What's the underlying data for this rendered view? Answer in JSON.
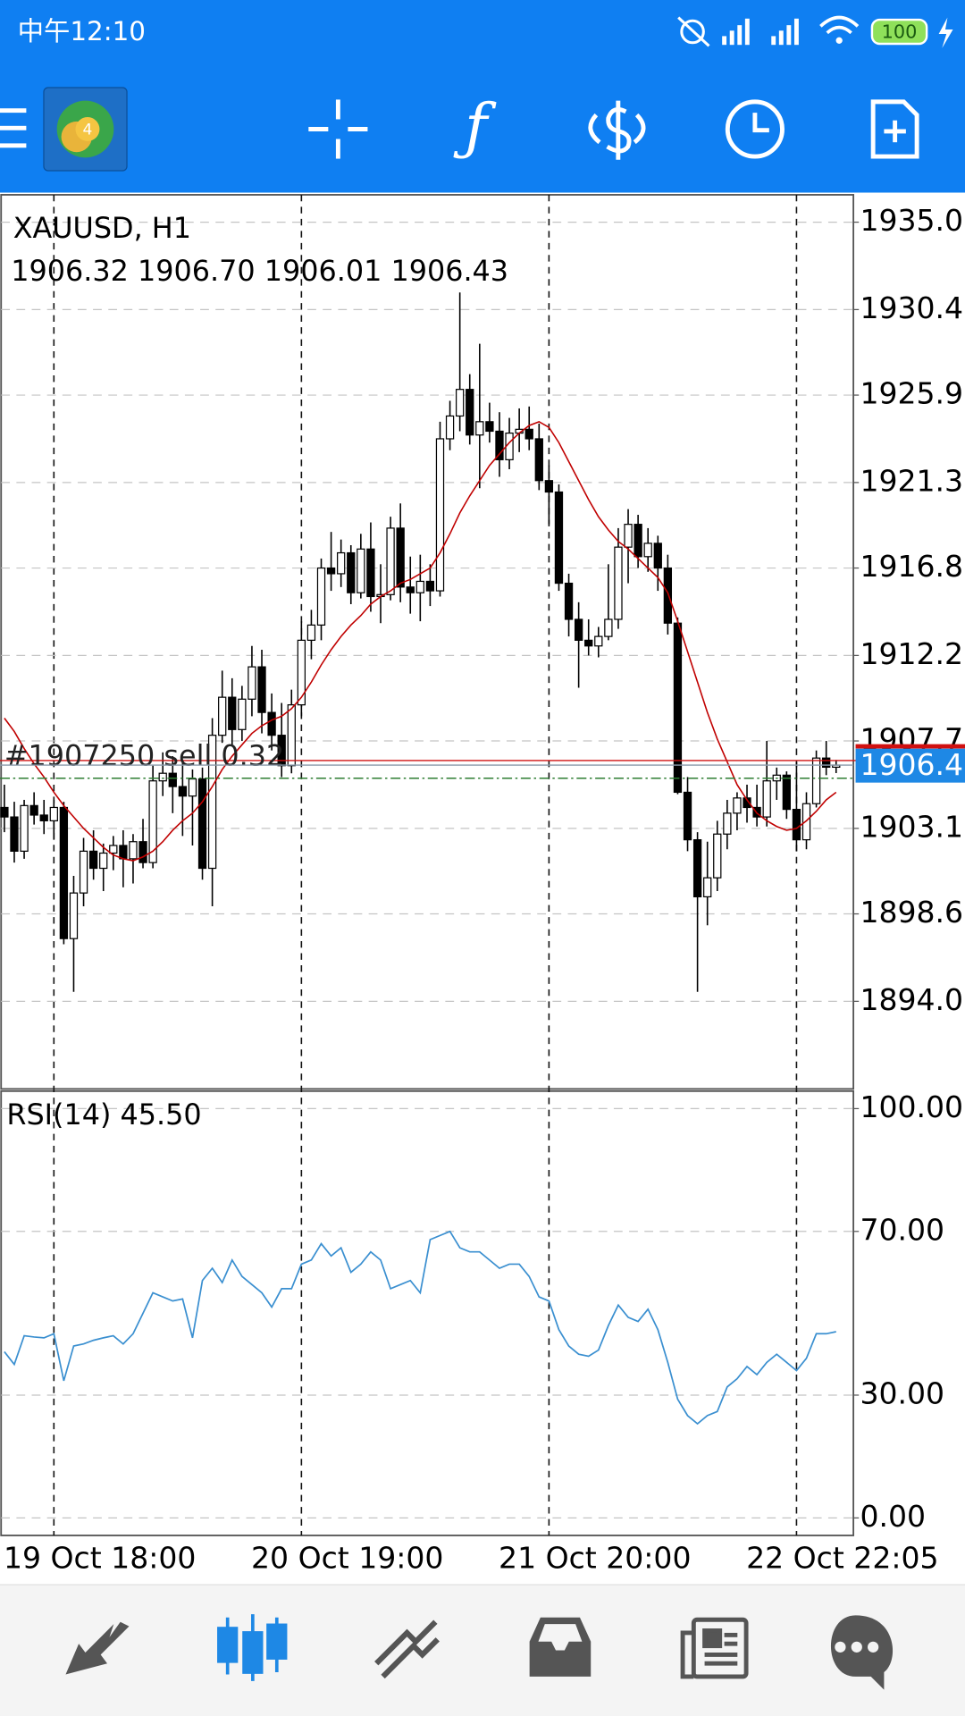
{
  "status_bar": {
    "time": "中午12:10",
    "battery": "100"
  },
  "chart_data": [
    {
      "type": "candlestick",
      "title": "XAUUSD, H1",
      "ohlc_label": "1906.32 1906.70 1906.01 1906.43",
      "categories": [
        null,
        null,
        null,
        null,
        null,
        "19 Oct 18:00",
        null,
        null,
        null,
        null,
        null,
        null,
        null,
        null,
        null,
        null,
        null,
        null,
        null,
        null,
        null,
        null,
        null,
        null,
        null,
        null,
        null,
        null,
        null,
        null,
        "20 Oct 19:00",
        null,
        null,
        null,
        null,
        null,
        null,
        null,
        null,
        null,
        null,
        null,
        null,
        null,
        null,
        null,
        null,
        null,
        null,
        null,
        null,
        null,
        null,
        null,
        null,
        "21 Oct 20:00",
        null,
        null,
        null,
        null,
        null,
        null,
        null,
        null,
        null,
        null,
        null,
        null,
        null,
        null,
        null,
        null,
        null,
        null,
        null,
        null,
        null,
        null,
        null,
        null,
        "22 Oct 22:05",
        null,
        null,
        null,
        null
      ],
      "open": [
        1904.2,
        1903.7,
        1901.9,
        1904.3,
        1903.8,
        1903.5,
        1904.2,
        1897.3,
        1899.7,
        1901.9,
        1901.0,
        1901.8,
        1902.2,
        1901.5,
        1902.4,
        1901.3,
        1905.6,
        1906.0,
        1905.3,
        1904.8,
        1905.7,
        1901.0,
        1908.0,
        1910.0,
        1908.3,
        1909.9,
        1911.6,
        1909.2,
        1908.0,
        1906.4,
        1909.6,
        1913.0,
        1913.8,
        1916.8,
        1916.5,
        1917.6,
        1915.5,
        1917.8,
        1915.3,
        1915.4,
        1918.9,
        1915.8,
        1915.5,
        1916.1,
        1915.6,
        1923.6,
        1924.8,
        1926.2,
        1923.8,
        1924.5,
        1924.0,
        1922.5,
        1923.9,
        1924.1,
        1923.6,
        1921.4,
        1920.8,
        1916.0,
        1914.1,
        1913.0,
        1912.7,
        1913.2,
        1914.1,
        1917.9,
        1919.1,
        1917.4,
        1918.1,
        1916.8,
        1913.9,
        1905.0,
        1902.5,
        1899.5,
        1900.5,
        1902.8,
        1903.9,
        1904.7,
        1904.2,
        1903.7,
        1905.6,
        1905.9,
        1904.1,
        1902.5,
        1904.4,
        1906.8,
        1906.32
      ],
      "high": [
        1905.4,
        1904.5,
        1904.6,
        1905.0,
        1904.6,
        1904.6,
        1904.5,
        1900.6,
        1902.6,
        1903.0,
        1902.3,
        1902.7,
        1903.0,
        1902.8,
        1903.6,
        1906.4,
        1907.1,
        1906.9,
        1906.7,
        1906.2,
        1906.3,
        1908.9,
        1911.4,
        1911.0,
        1910.6,
        1912.7,
        1912.5,
        1910.2,
        1909.7,
        1910.4,
        1914.0,
        1914.6,
        1917.3,
        1918.7,
        1918.3,
        1918.0,
        1918.6,
        1919.2,
        1917.0,
        1919.5,
        1920.2,
        1917.4,
        1917.5,
        1917.0,
        1924.5,
        1925.6,
        1931.3,
        1927.0,
        1928.6,
        1925.5,
        1925.0,
        1924.7,
        1925.2,
        1925.3,
        1924.4,
        1922.2,
        1921.2,
        1916.5,
        1915.0,
        1914.1,
        1913.7,
        1917.0,
        1918.9,
        1919.9,
        1919.6,
        1918.9,
        1918.5,
        1917.5,
        1914.2,
        1905.8,
        1902.9,
        1902.4,
        1903.5,
        1904.6,
        1905.0,
        1905.4,
        1905.4,
        1907.7,
        1906.3,
        1906.1,
        1906.6,
        1905.0,
        1907.2,
        1907.7,
        1906.7
      ],
      "low": [
        1902.9,
        1901.3,
        1901.5,
        1903.3,
        1902.8,
        1902.5,
        1897.0,
        1894.5,
        1899.0,
        1900.4,
        1899.8,
        1900.9,
        1900.0,
        1900.2,
        1901.0,
        1901.0,
        1904.8,
        1903.9,
        1902.7,
        1902.2,
        1900.4,
        1899.0,
        1907.6,
        1907.5,
        1907.7,
        1909.0,
        1908.1,
        1907.2,
        1905.8,
        1906.0,
        1909.0,
        1912.0,
        1913.0,
        1915.6,
        1915.8,
        1914.9,
        1915.2,
        1914.5,
        1913.9,
        1915.1,
        1915.0,
        1914.4,
        1914.0,
        1914.8,
        1915.3,
        1923.0,
        1924.0,
        1923.3,
        1921.0,
        1923.4,
        1921.6,
        1922.0,
        1922.9,
        1923.0,
        1920.9,
        1919.1,
        1915.6,
        1913.2,
        1910.5,
        1912.2,
        1912.1,
        1913.0,
        1913.6,
        1916.0,
        1916.8,
        1916.6,
        1915.6,
        1913.3,
        1904.9,
        1901.9,
        1894.5,
        1898.0,
        1899.8,
        1902.0,
        1903.0,
        1903.4,
        1903.2,
        1903.2,
        1904.6,
        1903.6,
        1901.9,
        1902.0,
        1904.2,
        1905.9,
        1906.01
      ],
      "close": [
        1903.7,
        1901.9,
        1904.3,
        1903.8,
        1903.5,
        1904.2,
        1897.3,
        1899.7,
        1901.9,
        1901.0,
        1901.8,
        1902.2,
        1901.5,
        1902.4,
        1901.3,
        1905.6,
        1906.0,
        1905.3,
        1904.8,
        1905.7,
        1901.0,
        1908.0,
        1910.0,
        1908.3,
        1909.9,
        1911.6,
        1909.2,
        1908.0,
        1906.4,
        1909.6,
        1913.0,
        1913.8,
        1916.8,
        1916.5,
        1917.6,
        1915.5,
        1917.8,
        1915.3,
        1915.4,
        1918.9,
        1915.8,
        1915.5,
        1916.1,
        1915.6,
        1923.6,
        1924.8,
        1926.2,
        1923.8,
        1924.5,
        1924.0,
        1922.5,
        1923.9,
        1924.1,
        1923.6,
        1921.4,
        1920.8,
        1916.0,
        1914.1,
        1913.0,
        1912.7,
        1913.2,
        1914.1,
        1917.9,
        1919.1,
        1917.4,
        1918.1,
        1916.8,
        1913.9,
        1905.0,
        1902.5,
        1899.5,
        1900.5,
        1902.8,
        1903.9,
        1904.7,
        1904.2,
        1903.7,
        1905.6,
        1905.9,
        1904.1,
        1902.5,
        1904.4,
        1906.8,
        1906.32,
        1906.43
      ],
      "up_color": "#ffffff",
      "down_color": "#000000",
      "ma": {
        "color": "#c00000",
        "values": [
          1908.9,
          1908.2,
          1907.3,
          1906.5,
          1905.8,
          1905.0,
          1904.3,
          1903.7,
          1903.1,
          1902.6,
          1902.1,
          1901.7,
          1901.5,
          1901.4,
          1901.6,
          1901.9,
          1902.4,
          1903.0,
          1903.5,
          1903.9,
          1904.5,
          1905.3,
          1906.2,
          1906.9,
          1907.5,
          1908.1,
          1908.5,
          1908.8,
          1909.0,
          1909.4,
          1910.0,
          1910.8,
          1911.7,
          1912.5,
          1913.2,
          1913.8,
          1914.3,
          1914.9,
          1915.3,
          1915.6,
          1916.0,
          1916.2,
          1916.5,
          1916.8,
          1917.6,
          1918.6,
          1919.7,
          1920.6,
          1921.4,
          1922.2,
          1922.8,
          1923.4,
          1923.9,
          1924.3,
          1924.5,
          1924.2,
          1923.4,
          1922.4,
          1921.4,
          1920.4,
          1919.5,
          1918.8,
          1918.2,
          1917.8,
          1917.3,
          1916.8,
          1916.3,
          1915.5,
          1914.0,
          1912.4,
          1910.8,
          1909.2,
          1907.8,
          1906.6,
          1905.4,
          1904.6,
          1903.9,
          1903.5,
          1903.2,
          1903.0,
          1903.1,
          1903.5,
          1904.0,
          1904.6,
          1905.0
        ]
      },
      "order_line": {
        "label": "#1907250 sell 0.32",
        "price": 1906.67,
        "color": "#d01010"
      },
      "bid_line": {
        "value": 1906.43,
        "label": "1906.4",
        "color": "#1e88e5"
      },
      "stop_line": {
        "value": 1905.74,
        "color": "#2e7d32"
      },
      "ylim": [
        1889.39,
        1936.44
      ],
      "yticks": [
        {
          "value": 1935.0,
          "label": "1935.0"
        },
        1930.4,
        1925.9,
        1921.3,
        1916.8,
        1912.2,
        1907.7,
        1903.1,
        1898.6,
        {
          "value": 1894.0,
          "label": "1894.0"
        }
      ],
      "grid": true
    },
    {
      "type": "line",
      "title": "RSI(14) 45.50",
      "color": "#3a8fd0",
      "values": [
        40.6,
        37.5,
        44.5,
        44.2,
        44,
        45,
        33.5,
        42,
        42.5,
        43.4,
        44,
        44.5,
        42.5,
        45,
        50,
        55,
        54,
        53,
        53.5,
        44,
        58,
        61,
        57.5,
        63,
        59,
        57,
        55,
        51.5,
        56,
        56,
        62,
        63,
        67,
        64,
        66,
        60,
        62,
        65,
        63,
        56,
        57,
        58,
        55,
        68,
        69,
        70,
        66,
        65,
        65,
        63,
        61,
        62,
        62,
        59,
        54,
        53,
        46,
        42,
        40,
        39.5,
        41,
        47,
        52,
        49,
        48,
        51,
        46,
        38,
        29,
        25,
        23,
        25,
        26,
        32,
        34,
        37,
        35,
        38,
        40,
        38,
        36,
        39,
        45,
        45,
        45.5
      ],
      "ylim": [
        0,
        100
      ],
      "yticks": [
        {
          "value": 100,
          "label": "100.00"
        },
        {
          "value": 70,
          "label": "70.00"
        },
        {
          "value": 30,
          "label": "30.00"
        },
        {
          "value": 0,
          "label": "0.00"
        }
      ],
      "grid": true
    }
  ]
}
